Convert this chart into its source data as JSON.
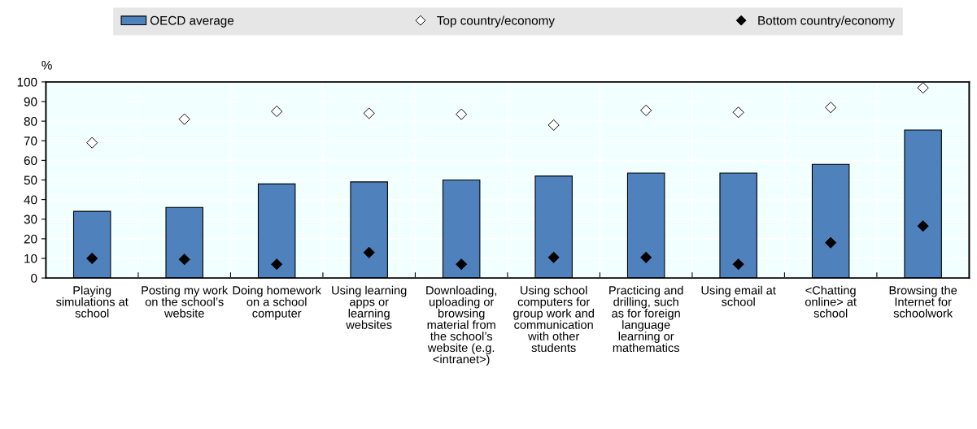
{
  "chart_data": {
    "type": "bar",
    "ylabel": "%",
    "categories": [
      "Playing simulations at school",
      "Posting my work on the school’s website",
      "Doing homework on a school computer",
      "Using learning apps or learning websites",
      "Downloading, uploading or browsing material from the school’s website (e.g. <intranet>)",
      "Using school computers for group work and communication with other students",
      "Practicing and drilling, such as for foreign language learning or mathematics",
      "Using email at school",
      "<Chatting online> at school",
      "Browsing the Internet for schoolwork"
    ],
    "series": [
      {
        "name": "OECD average",
        "type": "bar",
        "color": "#4f81bd",
        "values": [
          34,
          36,
          48,
          49,
          50,
          52,
          53.5,
          53.5,
          58,
          75.5
        ]
      },
      {
        "name": "Top country/economy",
        "type": "scatter",
        "color": "#ffffff",
        "marker": "diamond",
        "values": [
          69,
          81,
          85,
          84,
          83.5,
          78,
          85.5,
          84.5,
          87,
          97
        ]
      },
      {
        "name": "Bottom country/economy",
        "type": "scatter",
        "color": "#000000",
        "marker": "diamond",
        "values": [
          10,
          9.5,
          7,
          13,
          7,
          10.5,
          10.5,
          7,
          18,
          26.5
        ]
      }
    ],
    "ylim": [
      0,
      100
    ],
    "yticks": [
      0,
      10,
      20,
      30,
      40,
      50,
      60,
      70,
      80,
      90,
      100
    ],
    "grid": true,
    "legend": "top"
  }
}
